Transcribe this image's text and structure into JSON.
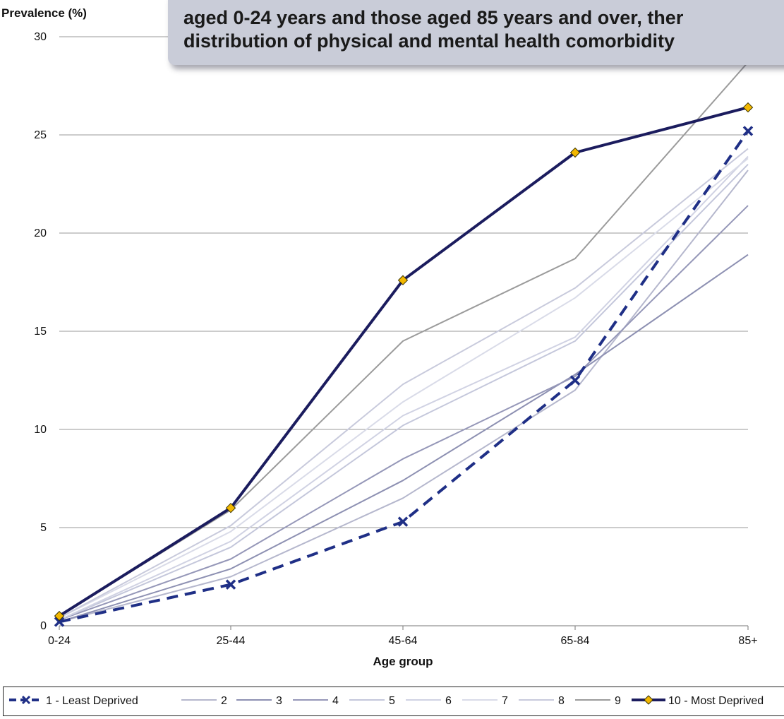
{
  "callout": {
    "line1": "aged 0-24 years and those aged 85 years and over, ther",
    "line2": "distribution of physical and mental health comorbidity"
  },
  "chart_data": {
    "type": "line",
    "title": "",
    "xlabel": "Age group",
    "ylabel": "Prevalence (%)",
    "ylim": [
      0,
      30
    ],
    "yticks": [
      "0",
      "5",
      "10",
      "15",
      "20",
      "25",
      "30"
    ],
    "grid": true,
    "legend_position": "bottom",
    "categories": [
      "0-24",
      "25-44",
      "45-64",
      "65-84",
      "85+"
    ],
    "series": [
      {
        "name": "1 - Least Deprived",
        "values": [
          0.2,
          2.1,
          5.3,
          12.5,
          25.2
        ],
        "color": "#1f2f86",
        "style": "dashed",
        "marker": "x"
      },
      {
        "name": "2",
        "values": [
          0.2,
          2.5,
          6.5,
          12.0,
          23.2
        ],
        "color": "#b5b7cd",
        "style": "solid"
      },
      {
        "name": "3",
        "values": [
          0.2,
          2.9,
          7.4,
          12.8,
          18.9
        ],
        "color": "#8d90b2",
        "style": "solid"
      },
      {
        "name": "4",
        "values": [
          0.3,
          3.4,
          8.5,
          12.7,
          21.4
        ],
        "color": "#9597b8",
        "style": "solid"
      },
      {
        "name": "5",
        "values": [
          0.3,
          4.0,
          10.2,
          14.5,
          23.5
        ],
        "color": "#c4c7db",
        "style": "solid"
      },
      {
        "name": "6",
        "values": [
          0.3,
          4.3,
          10.7,
          14.7,
          23.9
        ],
        "color": "#d0d2e3",
        "style": "solid"
      },
      {
        "name": "7",
        "values": [
          0.4,
          4.8,
          11.4,
          16.7,
          23.8
        ],
        "color": "#d9dbe8",
        "style": "solid"
      },
      {
        "name": "8",
        "values": [
          0.4,
          5.1,
          12.3,
          17.2,
          24.3
        ],
        "color": "#c8cadc",
        "style": "solid"
      },
      {
        "name": "9",
        "values": [
          0.5,
          5.9,
          14.5,
          18.7,
          28.7
        ],
        "color": "#9b9b9b",
        "style": "solid"
      },
      {
        "name": "10 - Most Deprived",
        "values": [
          0.5,
          6.0,
          17.6,
          24.1,
          26.4
        ],
        "color": "#1b1c5e",
        "style": "solid",
        "marker": "diamond",
        "marker_color": "#f2b700"
      }
    ]
  }
}
